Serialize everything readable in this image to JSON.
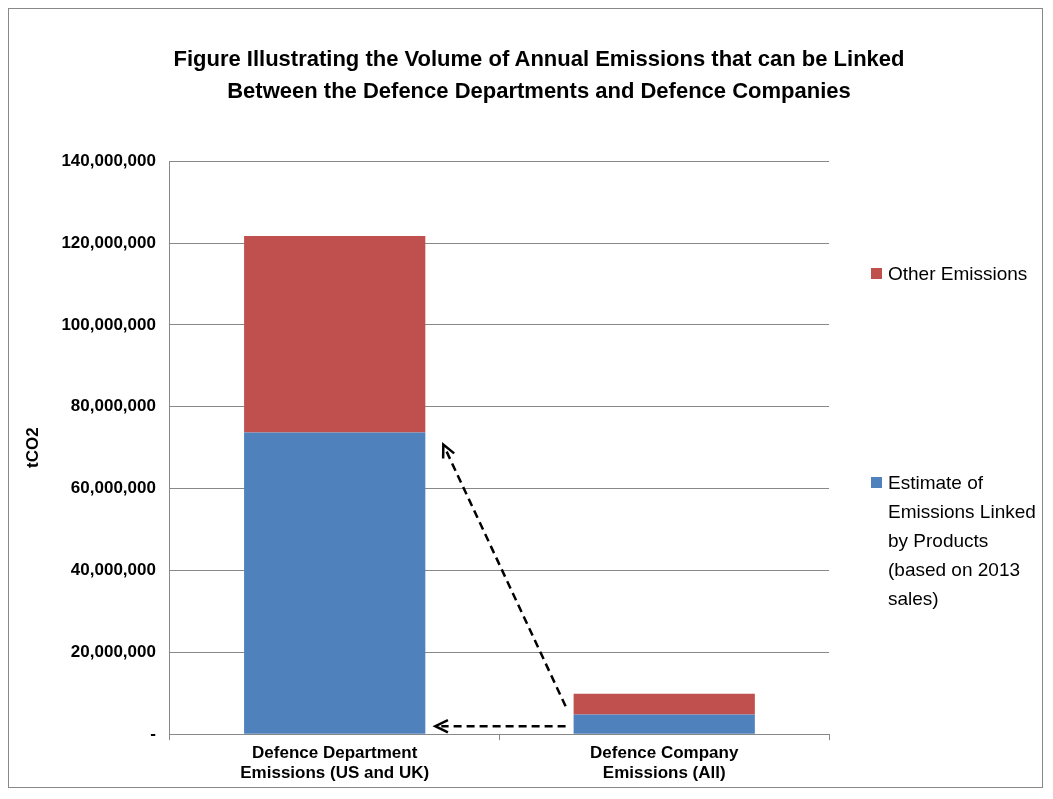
{
  "chart_data": {
    "type": "bar",
    "title": "Figure Illustrating the Volume of Annual Emissions that can be Linked Between the Defence Departments and Defence Companies",
    "ylabel": "tCO2",
    "categories": [
      "Defence Department Emissions (US and UK)",
      "Defence Company Emissions (All)"
    ],
    "stacked": true,
    "series": [
      {
        "name": "Estimate of Emissions Linked by Products (based on 2013 sales)",
        "color": "#4f81bd",
        "values": [
          73700000,
          4800000
        ]
      },
      {
        "name": "Other Emissions",
        "color": "#c0504d",
        "values": [
          48000000,
          5100000
        ]
      }
    ],
    "ylim": [
      0,
      140000000
    ],
    "yticks": [
      {
        "value": 0,
        "label": "-"
      },
      {
        "value": 20000000,
        "label": "20,000,000"
      },
      {
        "value": 40000000,
        "label": "40,000,000"
      },
      {
        "value": 60000000,
        "label": "60,000,000"
      },
      {
        "value": 80000000,
        "label": "80,000,000"
      },
      {
        "value": 100000000,
        "label": "100,000,000"
      },
      {
        "value": 120000000,
        "label": "120,000,000"
      },
      {
        "value": 140000000,
        "label": "140,000,000"
      }
    ],
    "grid": "y",
    "legend": "right"
  }
}
